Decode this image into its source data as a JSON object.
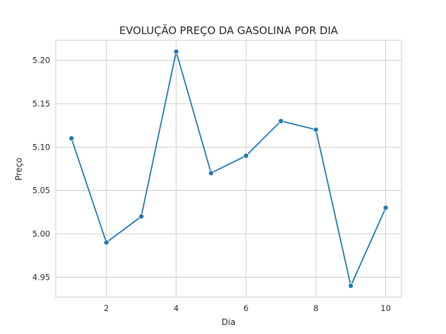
{
  "chart_data": {
    "type": "line",
    "title": "EVOLUÇÃO PREÇO DA GASOLINA POR DIA",
    "xlabel": "Dia",
    "ylabel": "Preço",
    "x": [
      1,
      2,
      3,
      4,
      5,
      6,
      7,
      8,
      9,
      10
    ],
    "series": [
      {
        "values": [
          5.11,
          4.99,
          5.02,
          5.21,
          5.07,
          5.09,
          5.13,
          5.12,
          4.94,
          5.03
        ],
        "color": "#1f77b4",
        "marker": "circle"
      }
    ],
    "xlim": [
      0.55,
      10.45
    ],
    "ylim": [
      4.927,
      5.223
    ],
    "xticks": [
      2,
      4,
      6,
      8,
      10
    ],
    "xtick_labels": [
      "2",
      "4",
      "6",
      "8",
      "10"
    ],
    "yticks": [
      4.95,
      5.0,
      5.05,
      5.1,
      5.15,
      5.2
    ],
    "ytick_labels": [
      "4.95",
      "5.00",
      "5.05",
      "5.10",
      "5.15",
      "5.20"
    ],
    "grid": true
  }
}
